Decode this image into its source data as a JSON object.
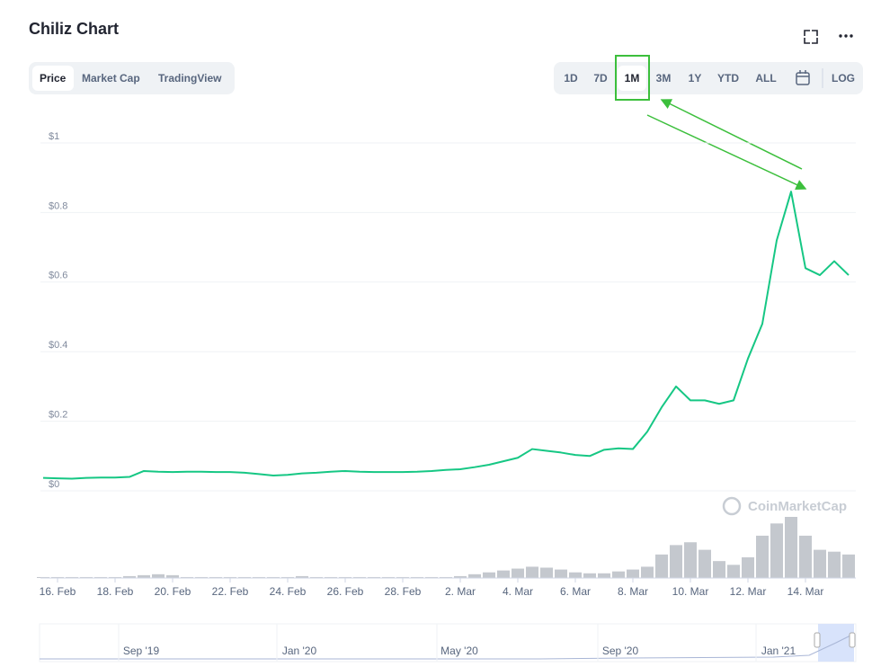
{
  "header": {
    "title": "Chiliz Chart"
  },
  "tabs": [
    "Price",
    "Market Cap",
    "TradingView"
  ],
  "ranges": [
    "1D",
    "7D",
    "1M",
    "3M",
    "1Y",
    "YTD",
    "ALL"
  ],
  "log_label": "LOG",
  "watermark": "CoinMarketCap",
  "chart_data": {
    "type": "line",
    "categories": [
      null,
      "16. Feb",
      null,
      null,
      null,
      "18. Feb",
      null,
      null,
      null,
      "20. Feb",
      null,
      null,
      null,
      "22. Feb",
      null,
      null,
      null,
      "24. Feb",
      null,
      null,
      null,
      "26. Feb",
      null,
      null,
      null,
      "28. Feb",
      null,
      null,
      null,
      "2. Mar",
      null,
      null,
      null,
      "4. Mar",
      null,
      null,
      null,
      "6. Mar",
      null,
      null,
      null,
      "8. Mar",
      null,
      null,
      null,
      "10. Mar",
      null,
      null,
      null,
      "12. Mar",
      null,
      null,
      null,
      "14. Mar",
      null,
      null,
      null
    ],
    "series": [
      {
        "color": "#16c784",
        "values": [
          0.037,
          0.036,
          0.035,
          0.037,
          0.038,
          0.038,
          0.04,
          0.057,
          0.055,
          0.054,
          0.055,
          0.055,
          0.054,
          0.054,
          0.052,
          0.048,
          0.044,
          0.046,
          0.05,
          0.052,
          0.055,
          0.057,
          0.055,
          0.054,
          0.054,
          0.054,
          0.055,
          0.057,
          0.06,
          0.062,
          0.068,
          0.075,
          0.085,
          0.095,
          0.12,
          0.115,
          0.11,
          0.103,
          0.1,
          0.118,
          0.122,
          0.12,
          0.17,
          0.24,
          0.3,
          0.26,
          0.26,
          0.25,
          0.26,
          0.38,
          0.48,
          0.72,
          0.86,
          0.64,
          0.62,
          0.66,
          0.62
        ]
      }
    ],
    "volume": {
      "color": "#c4c8ce",
      "values": [
        1,
        1,
        1,
        1,
        1,
        1,
        2,
        3,
        4,
        3,
        1,
        1,
        1,
        1,
        1,
        1,
        1,
        1,
        2,
        1,
        1,
        1,
        1,
        1,
        1,
        1,
        1,
        1,
        1,
        2,
        4,
        6,
        8,
        10,
        12,
        11,
        9,
        6,
        5,
        5,
        7,
        9,
        12,
        25,
        35,
        38,
        30,
        18,
        14,
        22,
        45,
        58,
        65,
        45,
        30,
        28,
        25
      ]
    },
    "ylim": [
      0,
      1
    ],
    "yticks": [
      {
        "value": 0,
        "label": "$0"
      },
      {
        "value": 0.2,
        "label": "$0.2"
      },
      {
        "value": 0.4,
        "label": "$0.4"
      },
      {
        "value": 0.6,
        "label": "$0.6"
      },
      {
        "value": 0.8,
        "label": "$0.8"
      },
      {
        "value": 1,
        "label": "$1"
      }
    ],
    "grid": true
  },
  "navigator": {
    "labels": [
      "Sep '19",
      "Jan '20",
      "May '20",
      "Sep '20",
      "Jan '21"
    ]
  }
}
